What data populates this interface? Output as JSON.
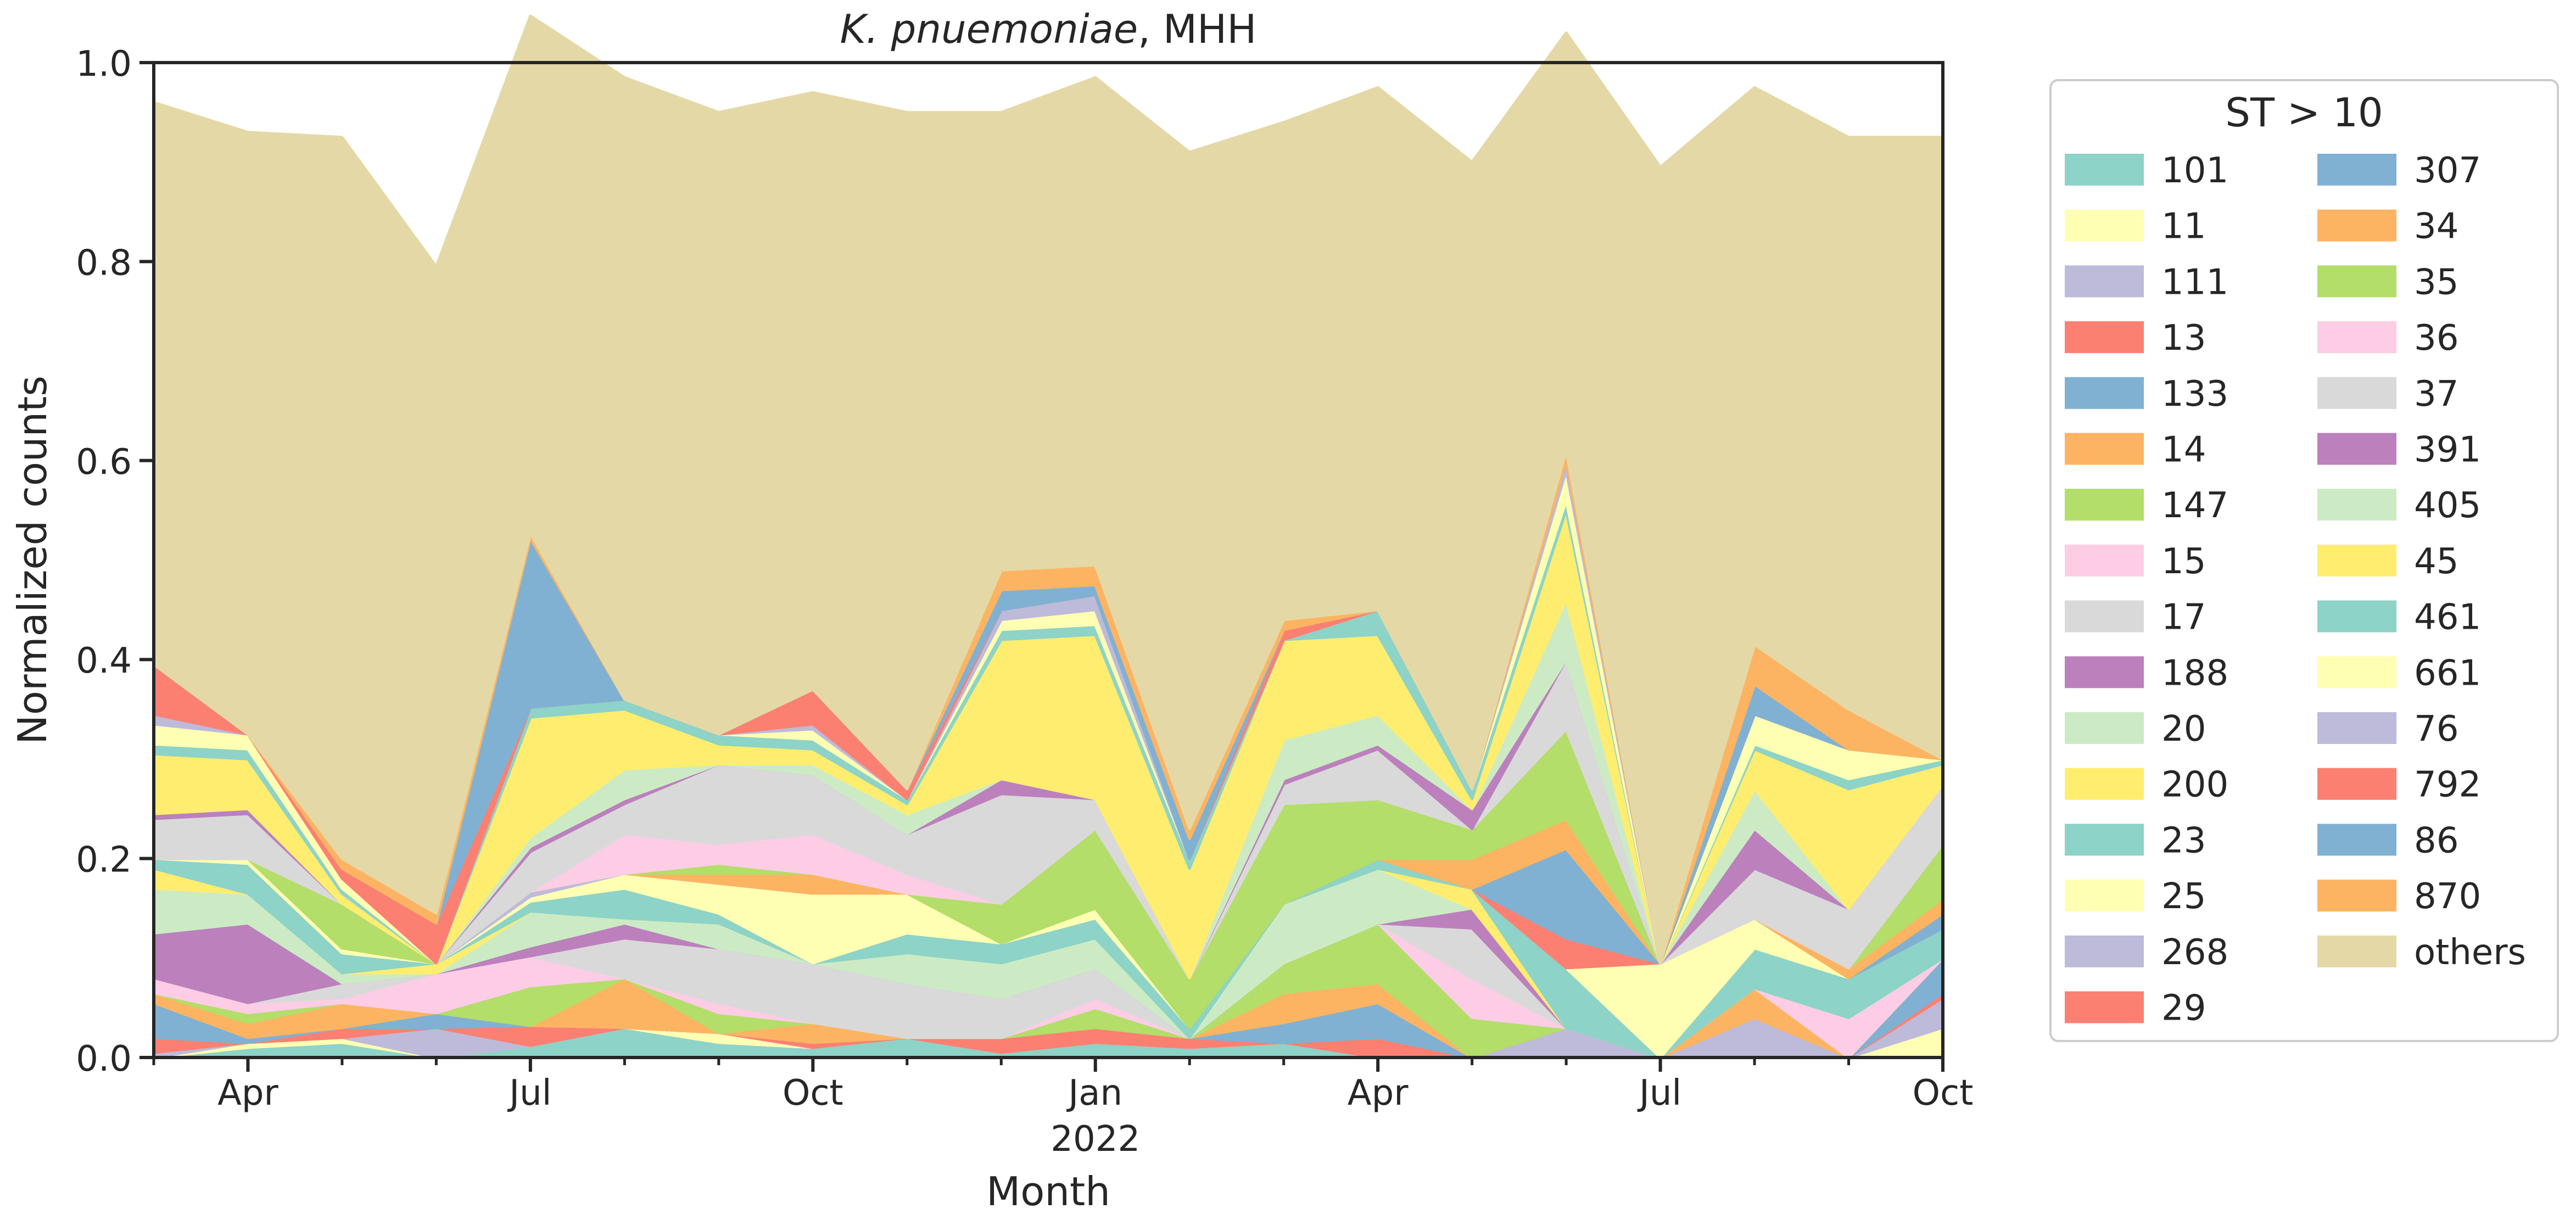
{
  "chart_data": {
    "type": "area",
    "stacked": true,
    "normalized": true,
    "title_italic": "K. pnuemoniae",
    "title_rest": ", MHH",
    "xlabel": "Month",
    "ylabel": "Normalized counts",
    "ylim": [
      0,
      1
    ],
    "yticks": [
      "0.0",
      "0.2",
      "0.4",
      "0.6",
      "0.8",
      "1.0"
    ],
    "x": [
      "2021-03",
      "2021-04",
      "2021-05",
      "2021-06",
      "2021-07",
      "2021-08",
      "2021-09",
      "2021-10",
      "2021-11",
      "2021-12",
      "2022-01",
      "2022-02",
      "2022-03",
      "2022-04",
      "2022-05",
      "2022-06",
      "2022-07",
      "2022-08",
      "2022-09",
      "2022-10"
    ],
    "xticks": [
      {
        "x": "2021-04",
        "label": "Apr"
      },
      {
        "x": "2021-07",
        "label": "Jul"
      },
      {
        "x": "2021-10",
        "label": "Oct"
      },
      {
        "x": "2022-01",
        "label": "Jan",
        "sublabel": "2022"
      },
      {
        "x": "2022-04",
        "label": "Apr"
      },
      {
        "x": "2022-07",
        "label": "Jul"
      },
      {
        "x": "2022-10",
        "label": "Oct"
      }
    ],
    "legend": {
      "title": "ST > 10",
      "placement": "outside-right",
      "columns": 2
    },
    "series": [
      {
        "name": "101",
        "color": "#8dd3c7",
        "values": [
          0.0,
          0.01,
          0.015,
          0.0,
          0.012,
          0.03,
          0.015,
          0.01,
          0.02,
          0.005,
          0.015,
          0.01,
          0.015,
          0.0,
          0.0,
          0.0,
          0.0,
          0.0,
          0.0,
          0.0
        ]
      },
      {
        "name": "11",
        "color": "#ffffb3",
        "values": [
          0.0,
          0.005,
          0.005,
          0.0,
          0.0,
          0.0,
          0.01,
          0.0,
          0.0,
          0.0,
          0.0,
          0.0,
          0.0,
          0.0,
          0.0,
          0.0,
          0.0,
          0.0,
          0.0,
          0.03
        ]
      },
      {
        "name": "111",
        "color": "#bebada",
        "values": [
          0.005,
          0.0,
          0.0,
          0.03,
          0.0,
          0.0,
          0.0,
          0.0,
          0.0,
          0.0,
          0.0,
          0.0,
          0.0,
          0.0,
          0.0,
          0.03,
          0.0,
          0.04,
          0.0,
          0.03
        ]
      },
      {
        "name": "13",
        "color": "#fb8072",
        "values": [
          0.015,
          0.0,
          0.01,
          0.0,
          0.02,
          0.0,
          0.0,
          0.005,
          0.0,
          0.015,
          0.015,
          0.01,
          0.0,
          0.02,
          0.0,
          0.0,
          0.0,
          0.0,
          0.0,
          0.005
        ]
      },
      {
        "name": "133",
        "color": "#80b1d3",
        "values": [
          0.035,
          0.005,
          0.0,
          0.015,
          0.0,
          0.0,
          0.0,
          0.0,
          0.0,
          0.0,
          0.0,
          0.0,
          0.02,
          0.035,
          0.0,
          0.0,
          0.0,
          0.0,
          0.0,
          0.035
        ]
      },
      {
        "name": "14",
        "color": "#fdb462",
        "values": [
          0.01,
          0.015,
          0.025,
          0.0,
          0.0,
          0.05,
          0.0,
          0.02,
          0.0,
          0.0,
          0.0,
          0.0,
          0.03,
          0.02,
          0.0,
          0.0,
          0.0,
          0.03,
          0.0,
          0.0
        ]
      },
      {
        "name": "147",
        "color": "#b3de69",
        "values": [
          0.0,
          0.01,
          0.0,
          0.0,
          0.04,
          0.0,
          0.02,
          0.0,
          0.0,
          0.0,
          0.02,
          0.0,
          0.03,
          0.06,
          0.04,
          0.0,
          0.0,
          0.0,
          0.0,
          0.0
        ]
      },
      {
        "name": "15",
        "color": "#fccde5",
        "values": [
          0.015,
          0.01,
          0.005,
          0.04,
          0.03,
          0.0,
          0.01,
          0.0,
          0.0,
          0.0,
          0.01,
          0.0,
          0.0,
          0.0,
          0.04,
          0.0,
          0.0,
          0.0,
          0.04,
          0.0
        ]
      },
      {
        "name": "17",
        "color": "#d9d9d9",
        "values": [
          0.0,
          0.0,
          0.015,
          0.0,
          0.0,
          0.04,
          0.055,
          0.06,
          0.055,
          0.04,
          0.03,
          0.0,
          0.0,
          0.0,
          0.05,
          0.0,
          0.0,
          0.0,
          0.0,
          0.0
        ]
      },
      {
        "name": "188",
        "color": "#bc80bd",
        "values": [
          0.045,
          0.08,
          0.0,
          0.0,
          0.01,
          0.015,
          0.0,
          0.0,
          0.0,
          0.0,
          0.0,
          0.0,
          0.0,
          0.0,
          0.02,
          0.0,
          0.0,
          0.0,
          0.0,
          0.0
        ]
      },
      {
        "name": "20",
        "color": "#ccebc5",
        "values": [
          0.045,
          0.03,
          0.01,
          0.0,
          0.035,
          0.005,
          0.025,
          0.0,
          0.03,
          0.035,
          0.03,
          0.0,
          0.06,
          0.055,
          0.0,
          0.0,
          0.0,
          0.0,
          0.0,
          0.0
        ]
      },
      {
        "name": "200",
        "color": "#ffed6f",
        "values": [
          0.02,
          0.0,
          0.0,
          0.01,
          0.0,
          0.0,
          0.0,
          0.0,
          0.0,
          0.0,
          0.0,
          0.0,
          0.0,
          0.0,
          0.02,
          0.0,
          0.0,
          0.0,
          0.0,
          0.0
        ]
      },
      {
        "name": "23",
        "color": "#8dd3c7",
        "values": [
          0.01,
          0.03,
          0.02,
          0.0,
          0.01,
          0.03,
          0.01,
          0.0,
          0.02,
          0.02,
          0.02,
          0.01,
          0.0,
          0.01,
          0.0,
          0.06,
          0.0,
          0.04,
          0.04,
          0.03
        ]
      },
      {
        "name": "25",
        "color": "#ffffb3",
        "values": [
          0.0,
          0.005,
          0.005,
          0.0,
          0.005,
          0.015,
          0.03,
          0.07,
          0.04,
          0.0,
          0.01,
          0.0,
          0.0,
          0.0,
          0.0,
          0.0,
          0.095,
          0.03,
          0.0,
          0.0
        ]
      },
      {
        "name": "268",
        "color": "#bebada",
        "values": [
          0.0,
          0.0,
          0.0,
          0.0,
          0.005,
          0.0,
          0.0,
          0.0,
          0.0,
          0.0,
          0.0,
          0.0,
          0.0,
          0.0,
          0.0,
          0.0,
          0.0,
          0.0,
          0.0,
          0.0
        ]
      },
      {
        "name": "29",
        "color": "#fb8072",
        "values": [
          0.0,
          0.0,
          0.0,
          0.0,
          0.0,
          0.0,
          0.0,
          0.0,
          0.0,
          0.0,
          0.0,
          0.0,
          0.0,
          0.0,
          0.0,
          0.03,
          0.0,
          0.0,
          0.0,
          0.0
        ]
      },
      {
        "name": "307",
        "color": "#80b1d3",
        "values": [
          0.0,
          0.0,
          0.0,
          0.0,
          0.0,
          0.0,
          0.0,
          0.0,
          0.0,
          0.0,
          0.0,
          0.0,
          0.0,
          0.0,
          0.0,
          0.09,
          0.0,
          0.0,
          0.0,
          0.015
        ]
      },
      {
        "name": "34",
        "color": "#fdb462",
        "values": [
          0.0,
          0.0,
          0.0,
          0.0,
          0.0,
          0.0,
          0.01,
          0.02,
          0.0,
          0.0,
          0.0,
          0.0,
          0.0,
          0.0,
          0.03,
          0.03,
          0.0,
          0.0,
          0.01,
          0.015
        ]
      },
      {
        "name": "35",
        "color": "#b3de69",
        "values": [
          0.0,
          0.0,
          0.045,
          0.0,
          0.0,
          0.0,
          0.01,
          0.0,
          0.0,
          0.04,
          0.08,
          0.05,
          0.1,
          0.06,
          0.03,
          0.09,
          0.0,
          0.0,
          0.0,
          0.055
        ]
      },
      {
        "name": "36",
        "color": "#fccde5",
        "values": [
          0.0,
          0.0,
          0.0,
          0.0,
          0.0,
          0.04,
          0.02,
          0.04,
          0.02,
          0.0,
          0.0,
          0.0,
          0.0,
          0.0,
          0.0,
          0.0,
          0.0,
          0.0,
          0.0,
          0.0
        ]
      },
      {
        "name": "37",
        "color": "#d9d9d9",
        "values": [
          0.04,
          0.045,
          0.0,
          0.0,
          0.04,
          0.03,
          0.08,
          0.06,
          0.04,
          0.11,
          0.03,
          0.0,
          0.02,
          0.05,
          0.0,
          0.07,
          0.0,
          0.05,
          0.06,
          0.06
        ]
      },
      {
        "name": "391",
        "color": "#bc80bd",
        "values": [
          0.005,
          0.005,
          0.0,
          0.0,
          0.005,
          0.005,
          0.0,
          0.0,
          0.0,
          0.015,
          0.0,
          0.0,
          0.005,
          0.005,
          0.02,
          0.0,
          0.0,
          0.04,
          0.0,
          0.0
        ]
      },
      {
        "name": "405",
        "color": "#ccebc5",
        "values": [
          0.0,
          0.0,
          0.0,
          0.0,
          0.01,
          0.03,
          0.0,
          0.01,
          0.02,
          0.0,
          0.0,
          0.0,
          0.04,
          0.03,
          0.0,
          0.06,
          0.0,
          0.04,
          0.0,
          0.0
        ]
      },
      {
        "name": "45",
        "color": "#ffed6f",
        "values": [
          0.06,
          0.05,
          0.01,
          0.0,
          0.12,
          0.06,
          0.02,
          0.015,
          0.01,
          0.14,
          0.165,
          0.11,
          0.1,
          0.08,
          0.01,
          0.09,
          0.0,
          0.04,
          0.12,
          0.02
        ]
      },
      {
        "name": "461",
        "color": "#8dd3c7",
        "values": [
          0.01,
          0.01,
          0.005,
          0.0,
          0.01,
          0.01,
          0.01,
          0.01,
          0.005,
          0.01,
          0.01,
          0.01,
          0.0,
          0.025,
          0.01,
          0.01,
          0.0,
          0.005,
          0.01,
          0.005
        ]
      },
      {
        "name": "661",
        "color": "#ffffb3",
        "values": [
          0.02,
          0.015,
          0.01,
          0.0,
          0.0,
          0.0,
          0.0,
          0.01,
          0.0,
          0.01,
          0.015,
          0.0,
          0.0,
          0.0,
          0.0,
          0.03,
          0.0,
          0.03,
          0.03,
          0.0
        ]
      },
      {
        "name": "76",
        "color": "#bebada",
        "values": [
          0.01,
          0.0,
          0.0,
          0.0,
          0.0,
          0.0,
          0.0,
          0.005,
          0.0,
          0.01,
          0.015,
          0.0,
          0.0,
          0.0,
          0.0,
          0.01,
          0.0,
          0.0,
          0.0,
          0.0
        ]
      },
      {
        "name": "792",
        "color": "#fb8072",
        "values": [
          0.05,
          0.0,
          0.01,
          0.04,
          0.0,
          0.0,
          0.0,
          0.035,
          0.01,
          0.0,
          0.0,
          0.0,
          0.01,
          0.0,
          0.0,
          0.0,
          0.0,
          0.0,
          0.0,
          0.0
        ]
      },
      {
        "name": "86",
        "color": "#80b1d3",
        "values": [
          0.0,
          0.0,
          0.0,
          0.0,
          0.17,
          0.0,
          0.0,
          0.0,
          0.0,
          0.02,
          0.01,
          0.02,
          0.0,
          0.0,
          0.0,
          0.0,
          0.0,
          0.03,
          0.0,
          0.0
        ]
      },
      {
        "name": "870",
        "color": "#fdb462",
        "values": [
          0.0,
          0.0,
          0.01,
          0.01,
          0.005,
          0.0,
          0.0,
          0.0,
          0.0,
          0.02,
          0.02,
          0.01,
          0.01,
          0.0,
          0.0,
          0.01,
          0.0,
          0.04,
          0.04,
          0.0
        ]
      },
      {
        "name": "others",
        "color": "#e4d9a6",
        "values": [
          0.565,
          0.605,
          0.725,
          0.65,
          0.52,
          0.625,
          0.625,
          0.6,
          0.68,
          0.46,
          0.49,
          0.68,
          0.5,
          0.525,
          0.63,
          0.42,
          0.8,
          0.56,
          0.575,
          0.625
        ]
      }
    ]
  }
}
